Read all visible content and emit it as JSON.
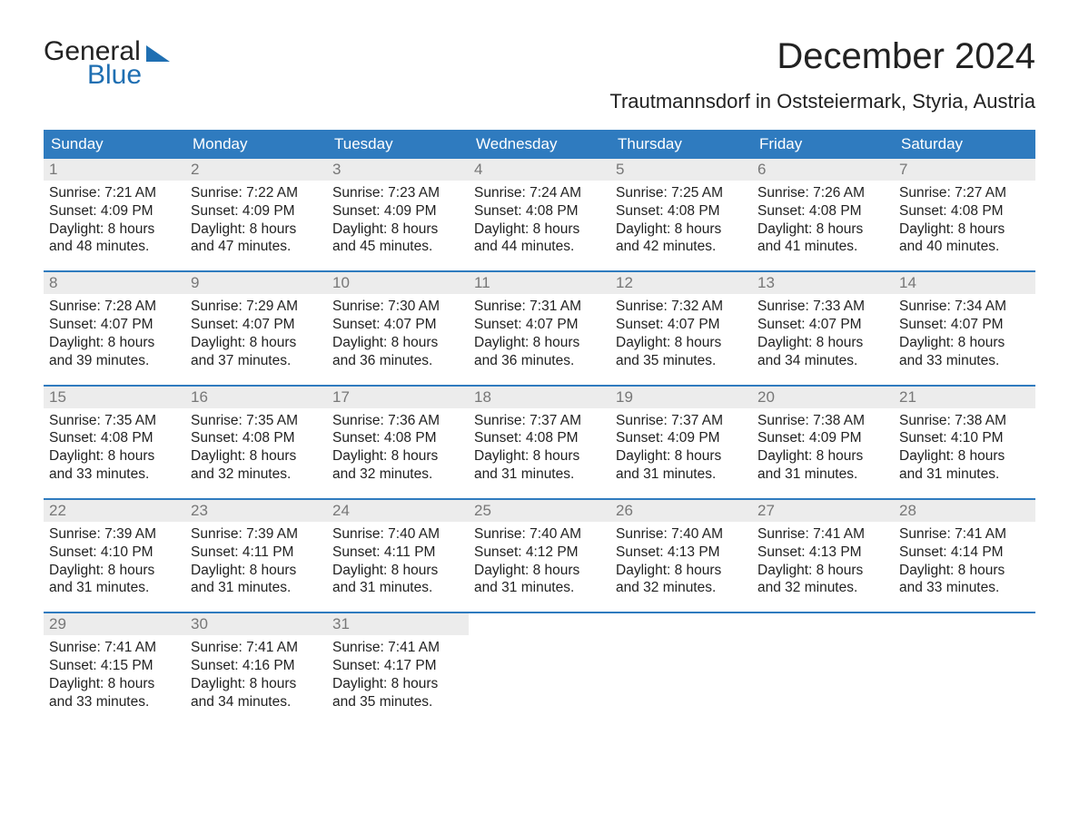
{
  "logo": {
    "line1": "General",
    "line2": "Blue"
  },
  "title": "December 2024",
  "location": "Trautmannsdorf in Oststeiermark, Styria, Austria",
  "colors": {
    "header_bg": "#2f7bbf",
    "header_text": "#ffffff",
    "daynum_bg": "#ececec",
    "daynum_text": "#777777",
    "body_text": "#222222",
    "logo_blue": "#1f6fb2",
    "background": "#ffffff",
    "week_rule": "#2f7bbf"
  },
  "typography": {
    "title_fontsize": 40,
    "location_fontsize": 22,
    "dayhead_fontsize": 17,
    "daynum_fontsize": 17,
    "cell_fontsize": 15.5
  },
  "day_headers": [
    "Sunday",
    "Monday",
    "Tuesday",
    "Wednesday",
    "Thursday",
    "Friday",
    "Saturday"
  ],
  "weeks": [
    [
      {
        "num": "1",
        "sunrise": "Sunrise: 7:21 AM",
        "sunset": "Sunset: 4:09 PM",
        "dl1": "Daylight: 8 hours",
        "dl2": "and 48 minutes."
      },
      {
        "num": "2",
        "sunrise": "Sunrise: 7:22 AM",
        "sunset": "Sunset: 4:09 PM",
        "dl1": "Daylight: 8 hours",
        "dl2": "and 47 minutes."
      },
      {
        "num": "3",
        "sunrise": "Sunrise: 7:23 AM",
        "sunset": "Sunset: 4:09 PM",
        "dl1": "Daylight: 8 hours",
        "dl2": "and 45 minutes."
      },
      {
        "num": "4",
        "sunrise": "Sunrise: 7:24 AM",
        "sunset": "Sunset: 4:08 PM",
        "dl1": "Daylight: 8 hours",
        "dl2": "and 44 minutes."
      },
      {
        "num": "5",
        "sunrise": "Sunrise: 7:25 AM",
        "sunset": "Sunset: 4:08 PM",
        "dl1": "Daylight: 8 hours",
        "dl2": "and 42 minutes."
      },
      {
        "num": "6",
        "sunrise": "Sunrise: 7:26 AM",
        "sunset": "Sunset: 4:08 PM",
        "dl1": "Daylight: 8 hours",
        "dl2": "and 41 minutes."
      },
      {
        "num": "7",
        "sunrise": "Sunrise: 7:27 AM",
        "sunset": "Sunset: 4:08 PM",
        "dl1": "Daylight: 8 hours",
        "dl2": "and 40 minutes."
      }
    ],
    [
      {
        "num": "8",
        "sunrise": "Sunrise: 7:28 AM",
        "sunset": "Sunset: 4:07 PM",
        "dl1": "Daylight: 8 hours",
        "dl2": "and 39 minutes."
      },
      {
        "num": "9",
        "sunrise": "Sunrise: 7:29 AM",
        "sunset": "Sunset: 4:07 PM",
        "dl1": "Daylight: 8 hours",
        "dl2": "and 37 minutes."
      },
      {
        "num": "10",
        "sunrise": "Sunrise: 7:30 AM",
        "sunset": "Sunset: 4:07 PM",
        "dl1": "Daylight: 8 hours",
        "dl2": "and 36 minutes."
      },
      {
        "num": "11",
        "sunrise": "Sunrise: 7:31 AM",
        "sunset": "Sunset: 4:07 PM",
        "dl1": "Daylight: 8 hours",
        "dl2": "and 36 minutes."
      },
      {
        "num": "12",
        "sunrise": "Sunrise: 7:32 AM",
        "sunset": "Sunset: 4:07 PM",
        "dl1": "Daylight: 8 hours",
        "dl2": "and 35 minutes."
      },
      {
        "num": "13",
        "sunrise": "Sunrise: 7:33 AM",
        "sunset": "Sunset: 4:07 PM",
        "dl1": "Daylight: 8 hours",
        "dl2": "and 34 minutes."
      },
      {
        "num": "14",
        "sunrise": "Sunrise: 7:34 AM",
        "sunset": "Sunset: 4:07 PM",
        "dl1": "Daylight: 8 hours",
        "dl2": "and 33 minutes."
      }
    ],
    [
      {
        "num": "15",
        "sunrise": "Sunrise: 7:35 AM",
        "sunset": "Sunset: 4:08 PM",
        "dl1": "Daylight: 8 hours",
        "dl2": "and 33 minutes."
      },
      {
        "num": "16",
        "sunrise": "Sunrise: 7:35 AM",
        "sunset": "Sunset: 4:08 PM",
        "dl1": "Daylight: 8 hours",
        "dl2": "and 32 minutes."
      },
      {
        "num": "17",
        "sunrise": "Sunrise: 7:36 AM",
        "sunset": "Sunset: 4:08 PM",
        "dl1": "Daylight: 8 hours",
        "dl2": "and 32 minutes."
      },
      {
        "num": "18",
        "sunrise": "Sunrise: 7:37 AM",
        "sunset": "Sunset: 4:08 PM",
        "dl1": "Daylight: 8 hours",
        "dl2": "and 31 minutes."
      },
      {
        "num": "19",
        "sunrise": "Sunrise: 7:37 AM",
        "sunset": "Sunset: 4:09 PM",
        "dl1": "Daylight: 8 hours",
        "dl2": "and 31 minutes."
      },
      {
        "num": "20",
        "sunrise": "Sunrise: 7:38 AM",
        "sunset": "Sunset: 4:09 PM",
        "dl1": "Daylight: 8 hours",
        "dl2": "and 31 minutes."
      },
      {
        "num": "21",
        "sunrise": "Sunrise: 7:38 AM",
        "sunset": "Sunset: 4:10 PM",
        "dl1": "Daylight: 8 hours",
        "dl2": "and 31 minutes."
      }
    ],
    [
      {
        "num": "22",
        "sunrise": "Sunrise: 7:39 AM",
        "sunset": "Sunset: 4:10 PM",
        "dl1": "Daylight: 8 hours",
        "dl2": "and 31 minutes."
      },
      {
        "num": "23",
        "sunrise": "Sunrise: 7:39 AM",
        "sunset": "Sunset: 4:11 PM",
        "dl1": "Daylight: 8 hours",
        "dl2": "and 31 minutes."
      },
      {
        "num": "24",
        "sunrise": "Sunrise: 7:40 AM",
        "sunset": "Sunset: 4:11 PM",
        "dl1": "Daylight: 8 hours",
        "dl2": "and 31 minutes."
      },
      {
        "num": "25",
        "sunrise": "Sunrise: 7:40 AM",
        "sunset": "Sunset: 4:12 PM",
        "dl1": "Daylight: 8 hours",
        "dl2": "and 31 minutes."
      },
      {
        "num": "26",
        "sunrise": "Sunrise: 7:40 AM",
        "sunset": "Sunset: 4:13 PM",
        "dl1": "Daylight: 8 hours",
        "dl2": "and 32 minutes."
      },
      {
        "num": "27",
        "sunrise": "Sunrise: 7:41 AM",
        "sunset": "Sunset: 4:13 PM",
        "dl1": "Daylight: 8 hours",
        "dl2": "and 32 minutes."
      },
      {
        "num": "28",
        "sunrise": "Sunrise: 7:41 AM",
        "sunset": "Sunset: 4:14 PM",
        "dl1": "Daylight: 8 hours",
        "dl2": "and 33 minutes."
      }
    ],
    [
      {
        "num": "29",
        "sunrise": "Sunrise: 7:41 AM",
        "sunset": "Sunset: 4:15 PM",
        "dl1": "Daylight: 8 hours",
        "dl2": "and 33 minutes."
      },
      {
        "num": "30",
        "sunrise": "Sunrise: 7:41 AM",
        "sunset": "Sunset: 4:16 PM",
        "dl1": "Daylight: 8 hours",
        "dl2": "and 34 minutes."
      },
      {
        "num": "31",
        "sunrise": "Sunrise: 7:41 AM",
        "sunset": "Sunset: 4:17 PM",
        "dl1": "Daylight: 8 hours",
        "dl2": "and 35 minutes."
      },
      null,
      null,
      null,
      null
    ]
  ]
}
